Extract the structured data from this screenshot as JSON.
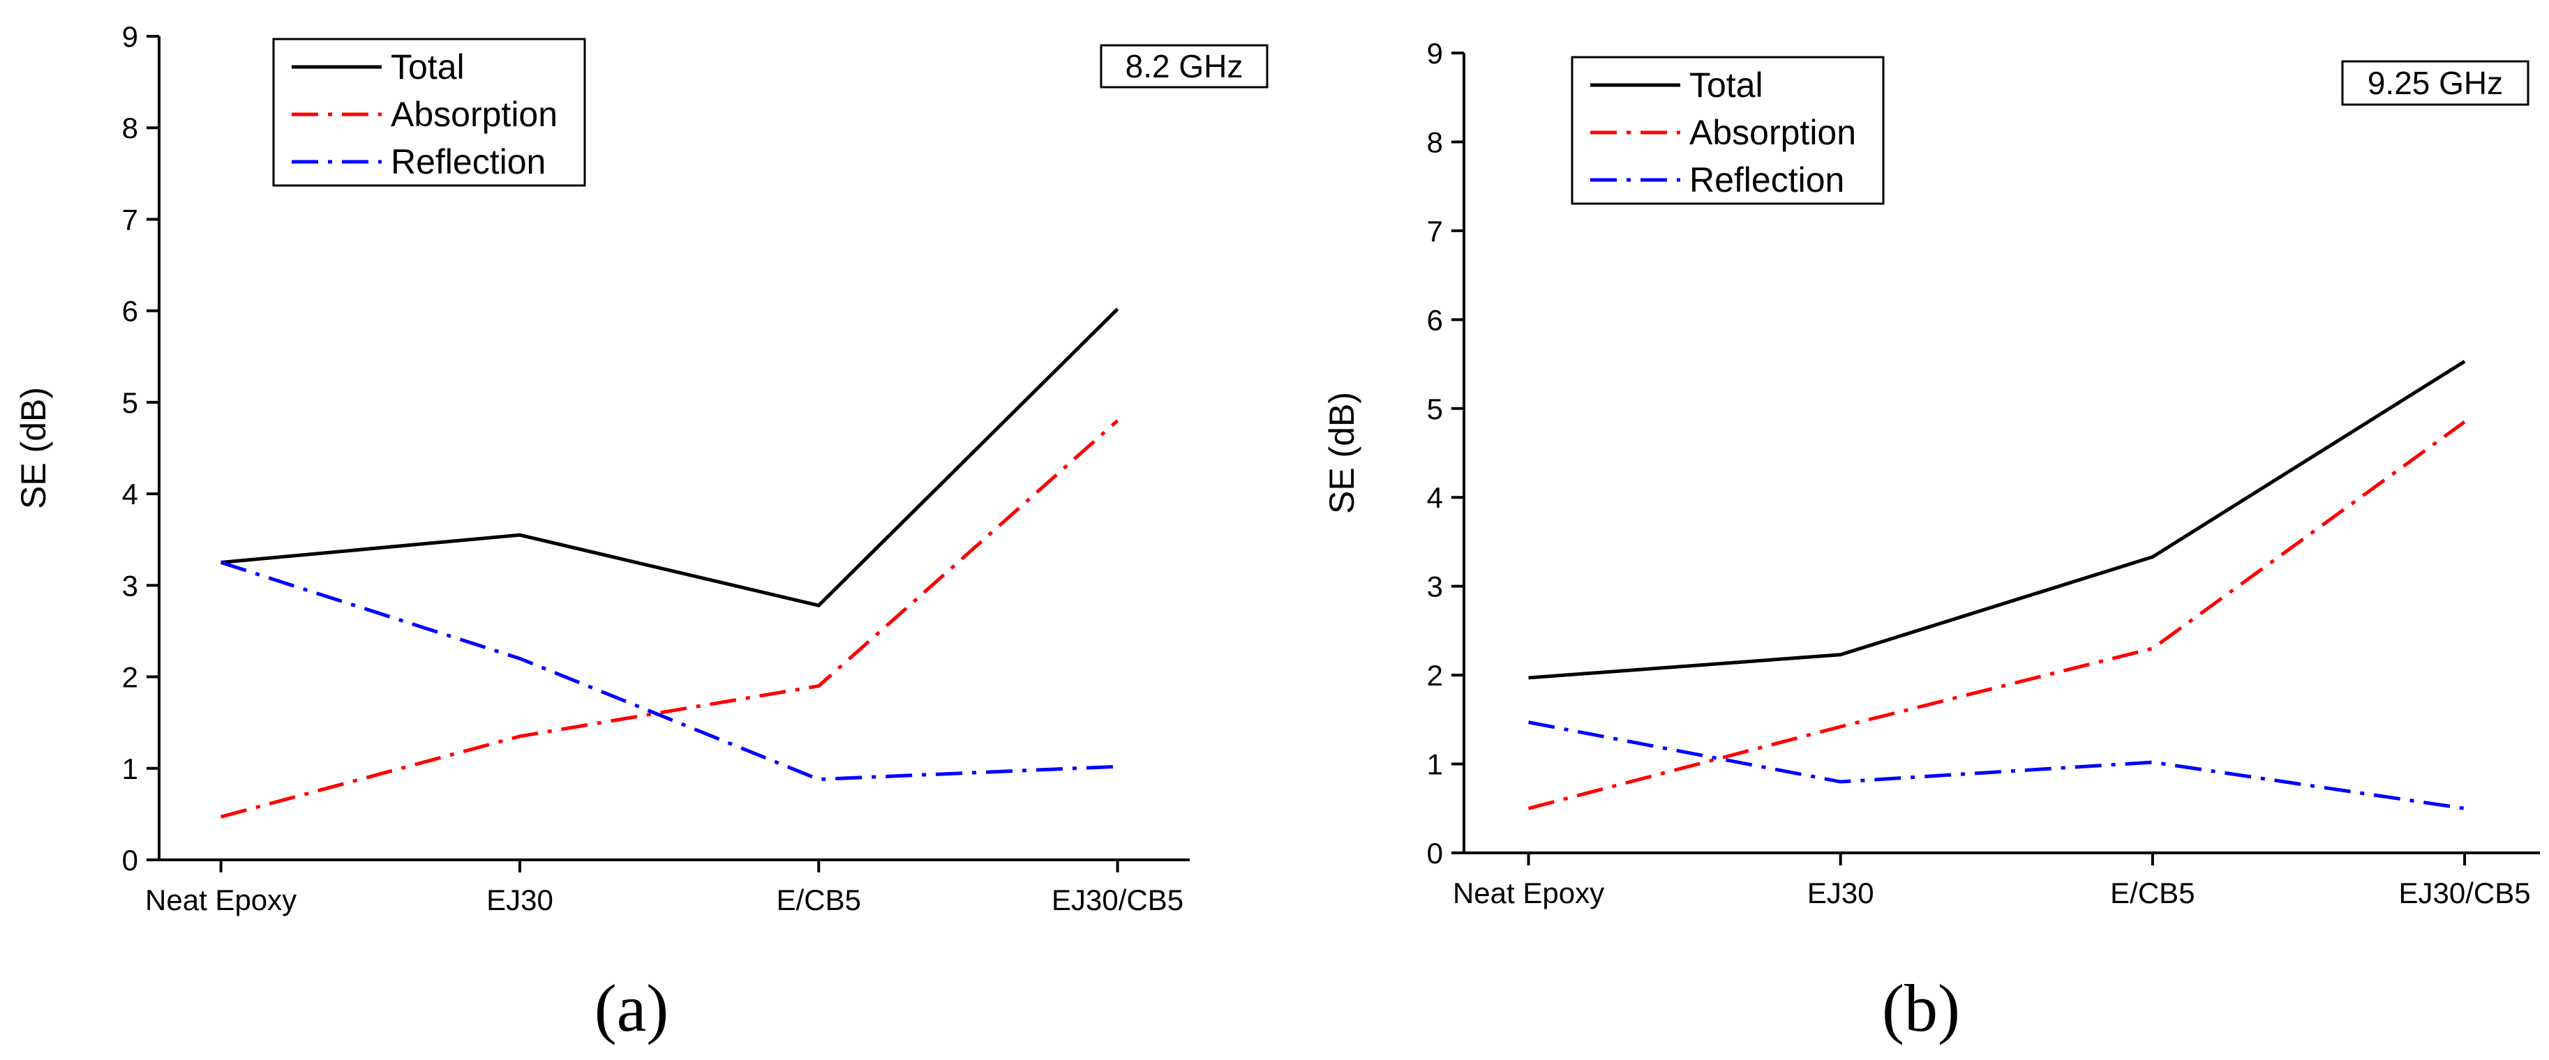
{
  "chart_data": [
    {
      "type": "line",
      "panel_label": "(a)",
      "annotation": "8.2 GHz",
      "title": "",
      "xlabel": "",
      "ylabel": "SE (dB)",
      "ylim": [
        0,
        9
      ],
      "yticks": [
        "0",
        "1",
        "2",
        "3",
        "4",
        "5",
        "6",
        "7",
        "8",
        "9"
      ],
      "categories": [
        "Neat Epoxy",
        "EJ30",
        "E/CB5",
        "EJ30/CB5"
      ],
      "legend_position": "top-left",
      "series": [
        {
          "name": "Total",
          "color": "#000000",
          "dash": "solid",
          "values": [
            3.25,
            3.55,
            2.78,
            6.02
          ]
        },
        {
          "name": "Absorption",
          "color": "#ff0000",
          "dash": "dash-dot",
          "values": [
            0.47,
            1.35,
            1.9,
            4.8
          ]
        },
        {
          "name": "Reflection",
          "color": "#0000ff",
          "dash": "dash-dot",
          "values": [
            3.25,
            2.2,
            0.88,
            1.02
          ]
        }
      ]
    },
    {
      "type": "line",
      "panel_label": "(b)",
      "annotation": "9.25 GHz",
      "title": "",
      "xlabel": "",
      "ylabel": "SE (dB)",
      "ylim": [
        0,
        9
      ],
      "yticks": [
        "0",
        "1",
        "2",
        "3",
        "4",
        "5",
        "6",
        "7",
        "8",
        "9"
      ],
      "categories": [
        "Neat Epoxy",
        "EJ30",
        "E/CB5",
        "EJ30/CB5"
      ],
      "legend_position": "top-left",
      "series": [
        {
          "name": "Total",
          "color": "#000000",
          "dash": "solid",
          "values": [
            1.97,
            2.23,
            3.33,
            5.53
          ]
        },
        {
          "name": "Absorption",
          "color": "#ff0000",
          "dash": "dash-dot",
          "values": [
            0.5,
            1.42,
            2.3,
            4.85
          ]
        },
        {
          "name": "Reflection",
          "color": "#0000ff",
          "dash": "dash-dot",
          "values": [
            1.47,
            0.8,
            1.02,
            0.5
          ]
        }
      ]
    }
  ]
}
